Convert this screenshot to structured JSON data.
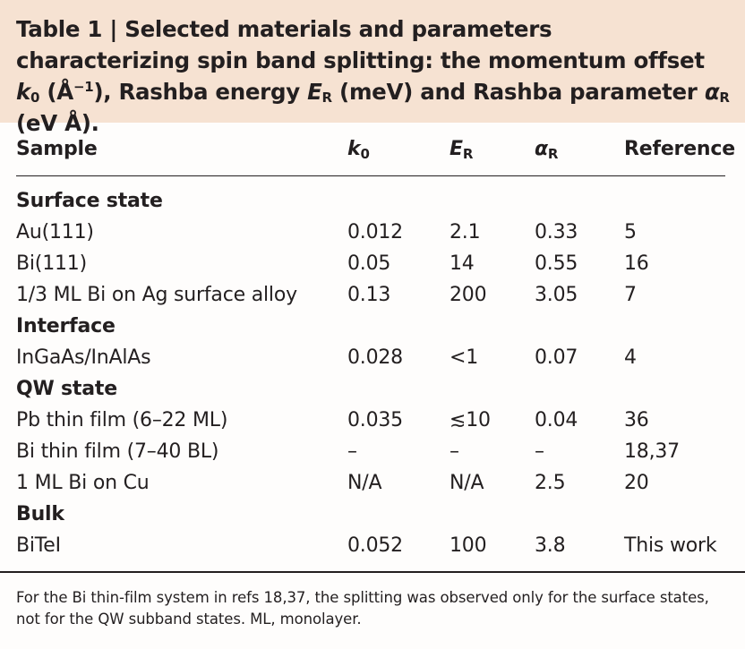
{
  "caption": {
    "prefix": "Table 1 | Selected materials and parameters characterizing spin band splitting: the momentum offset ",
    "k_sym": "k",
    "k_sub": "0",
    "k_unit_open": " (Å",
    "k_unit_sup": "−1",
    "k_unit_close": "), Rashba energy ",
    "e_sym": "E",
    "e_sub": "R",
    "e_unit": " (meV) and Rashba parameter ",
    "a_sym": "α",
    "a_sub": "R",
    "a_unit": " (eV Å)."
  },
  "header": {
    "sample": "Sample",
    "k_sym": "k",
    "k_sub": "0",
    "e_sym": "E",
    "e_sub": "R",
    "a_sym": "α",
    "a_sub": "R",
    "reference": "Reference"
  },
  "sections": {
    "surface": "Surface state",
    "interface": "Interface",
    "qw": "QW state",
    "bulk": "Bulk"
  },
  "rows": [
    {
      "sample": "Au(111)",
      "k0": "0.012",
      "er": "2.1",
      "ar": "0.33",
      "ref": "5"
    },
    {
      "sample": "Bi(111)",
      "k0": "0.05",
      "er": "14",
      "ar": "0.55",
      "ref": "16"
    },
    {
      "sample": "1/3 ML Bi on Ag surface alloy",
      "k0": "0.13",
      "er": "200",
      "ar": "3.05",
      "ref": "7"
    },
    {
      "sample": "InGaAs/InAlAs",
      "k0": "0.028",
      "er": "<1",
      "ar": "0.07",
      "ref": "4"
    },
    {
      "sample": "Pb thin film (6–22 ML)",
      "k0": "0.035",
      "er": "≲10",
      "ar": "0.04",
      "ref": "36"
    },
    {
      "sample": "Bi thin film (7–40 BL)",
      "k0": "–",
      "er": "–",
      "ar": "–",
      "ref": "18,37"
    },
    {
      "sample": "1 ML Bi on Cu",
      "k0": "N/A",
      "er": "N/A",
      "ar": "2.5",
      "ref": "20"
    },
    {
      "sample": "BiTeI",
      "k0": "0.052",
      "er": "100",
      "ar": "3.8",
      "ref": "This work"
    }
  ],
  "footnote": "For the Bi thin-film system in refs 18,37, the splitting was observed only for the surface states, not for the QW subband states. ML, monolayer.",
  "colors": {
    "caption_bg": "#f6e2d2",
    "text": "#231f20"
  }
}
